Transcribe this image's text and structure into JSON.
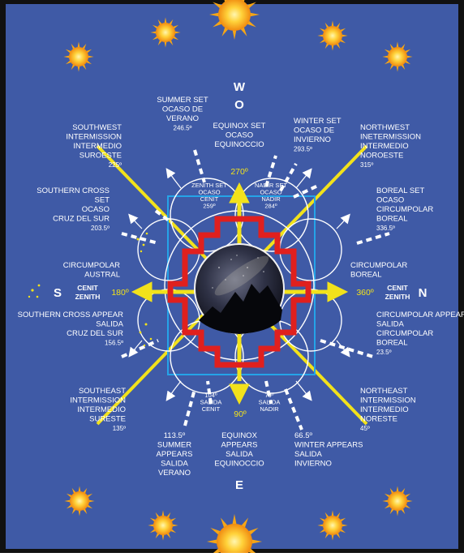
{
  "colors": {
    "background": "#3f5aa6",
    "frame": "#111111",
    "arrow": "#f2e21b",
    "cross": "#e0201e",
    "square": "#25a4e8",
    "rings": "#ffffff",
    "label": "#ffffff",
    "degree_yellow": "#f2e21b",
    "sun": "#f7b21a"
  },
  "cardinals": {
    "west_top": "W",
    "west_bottom": "O",
    "east": "E",
    "south": "S",
    "north": "N"
  },
  "center": {
    "image": "milky-way-night-sky-over-mountain"
  },
  "axis_degrees": {
    "top": "270º",
    "left": "180º",
    "right": "360º",
    "bottom": "90º"
  },
  "zenith": {
    "left_line1": "CENIT",
    "left_line2": "ZENITH",
    "right_line1": "CENIT",
    "right_line2": "ZENITH"
  },
  "labels": {
    "summer_set": [
      "SUMMER SET",
      "OCASO DE",
      "VERANO",
      "246.5º"
    ],
    "equinox_set": [
      "EQUINOX SET",
      "OCASO",
      "EQUINOCCIO"
    ],
    "winter_set": [
      "WINTER SET",
      "OCASO DE",
      "INVIERNO",
      "293.5º"
    ],
    "southwest": [
      "SOUTHWEST",
      "INTERMISSION",
      "INTERMEDIO",
      "SUROESTE",
      "225º"
    ],
    "northwest": [
      "NORTHWEST",
      "INETERMISSION",
      "INTERMEDIO",
      "NOROESTE",
      "315º"
    ],
    "zenith_set": [
      "ZENITH SET",
      "OCASO",
      "CENIT",
      "259º"
    ],
    "nadir_set": [
      "NADIR SET",
      "OCASO",
      "NADIR",
      "284º"
    ],
    "southern_cross_set": [
      "SOUTHERN CROSS",
      "SET",
      "OCASO",
      "CRUZ DEL SUR",
      "203.5º"
    ],
    "boreal_set": [
      "BOREAL SET",
      "OCASO",
      "CIRCUMPOLAR",
      "BOREAL",
      "336.5º"
    ],
    "circumpolar_austral": [
      "CIRCUMPOLAR",
      "AUSTRAL"
    ],
    "circumpolar_boreal": [
      "CIRCUMPOLAR",
      "BOREAL"
    ],
    "southern_cross_appear": [
      "SOUTHERN CROSS APPEAR",
      "SALIDA",
      "CRUZ DEL SUR",
      "156.5º"
    ],
    "circumpolar_appear": [
      "CIRCUMPOLAR APPEAR",
      "SALIDA",
      "CIRCUMPOLAR",
      "BOREAL",
      "23.5º"
    ],
    "southeast": [
      "SOUTHEAST",
      "INTERMISSION",
      "INTERMEDIO",
      "SURESTE",
      "135º"
    ],
    "northeast": [
      "NORTHEAST",
      "INTERMISSION",
      "INTERMEDIO",
      "NORESTE",
      "45º"
    ],
    "zenith_appear": [
      "104º",
      "SALIDA",
      "CENIT"
    ],
    "nadir_appear": [
      "79º",
      "SALIDA",
      "NADIR"
    ],
    "summer_appears": [
      "113.5º",
      "SUMMER",
      "APPEARS",
      "SALIDA",
      "VERANO"
    ],
    "equinox_appears": [
      "EQUINOX",
      "APPEARS",
      "SALIDA",
      "EQUINOCCIO"
    ],
    "winter_appears": [
      "66.5º",
      "WINTER APPEARS",
      "SALIDA",
      "INVIERNO"
    ]
  }
}
